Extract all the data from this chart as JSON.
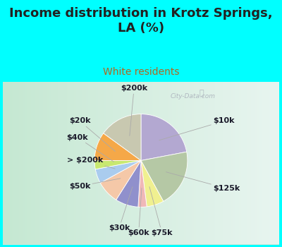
{
  "title": "Income distribution in Krotz Springs,\nLA (%)",
  "subtitle": "White residents",
  "background_color": "#00FFFF",
  "watermark": "City-Data.com",
  "slices": [
    {
      "label": "$10k",
      "value": 22,
      "color": "#b3a8d1"
    },
    {
      "label": "$125k",
      "value": 20,
      "color": "#b5c8a5"
    },
    {
      "label": "$75k",
      "value": 6,
      "color": "#f0f090"
    },
    {
      "label": "$60k",
      "value": 3,
      "color": "#f0b8b8"
    },
    {
      "label": "$30k",
      "value": 8,
      "color": "#9090cc"
    },
    {
      "label": "$50k",
      "value": 8,
      "color": "#f5c8a8"
    },
    {
      "label": "> $200k",
      "value": 5,
      "color": "#aaccee"
    },
    {
      "label": "$40k",
      "value": 3,
      "color": "#c8e870"
    },
    {
      "label": "$20k",
      "value": 10,
      "color": "#f5a848"
    },
    {
      "label": "$200k",
      "value": 15,
      "color": "#c8c8b0"
    }
  ],
  "label_fontsize": 8,
  "title_fontsize": 13,
  "subtitle_fontsize": 10,
  "title_color": "#222222",
  "subtitle_color": "#b06820",
  "chart_bg_color": "#d8eee0",
  "chart_bg_right": "#e8f4f4"
}
